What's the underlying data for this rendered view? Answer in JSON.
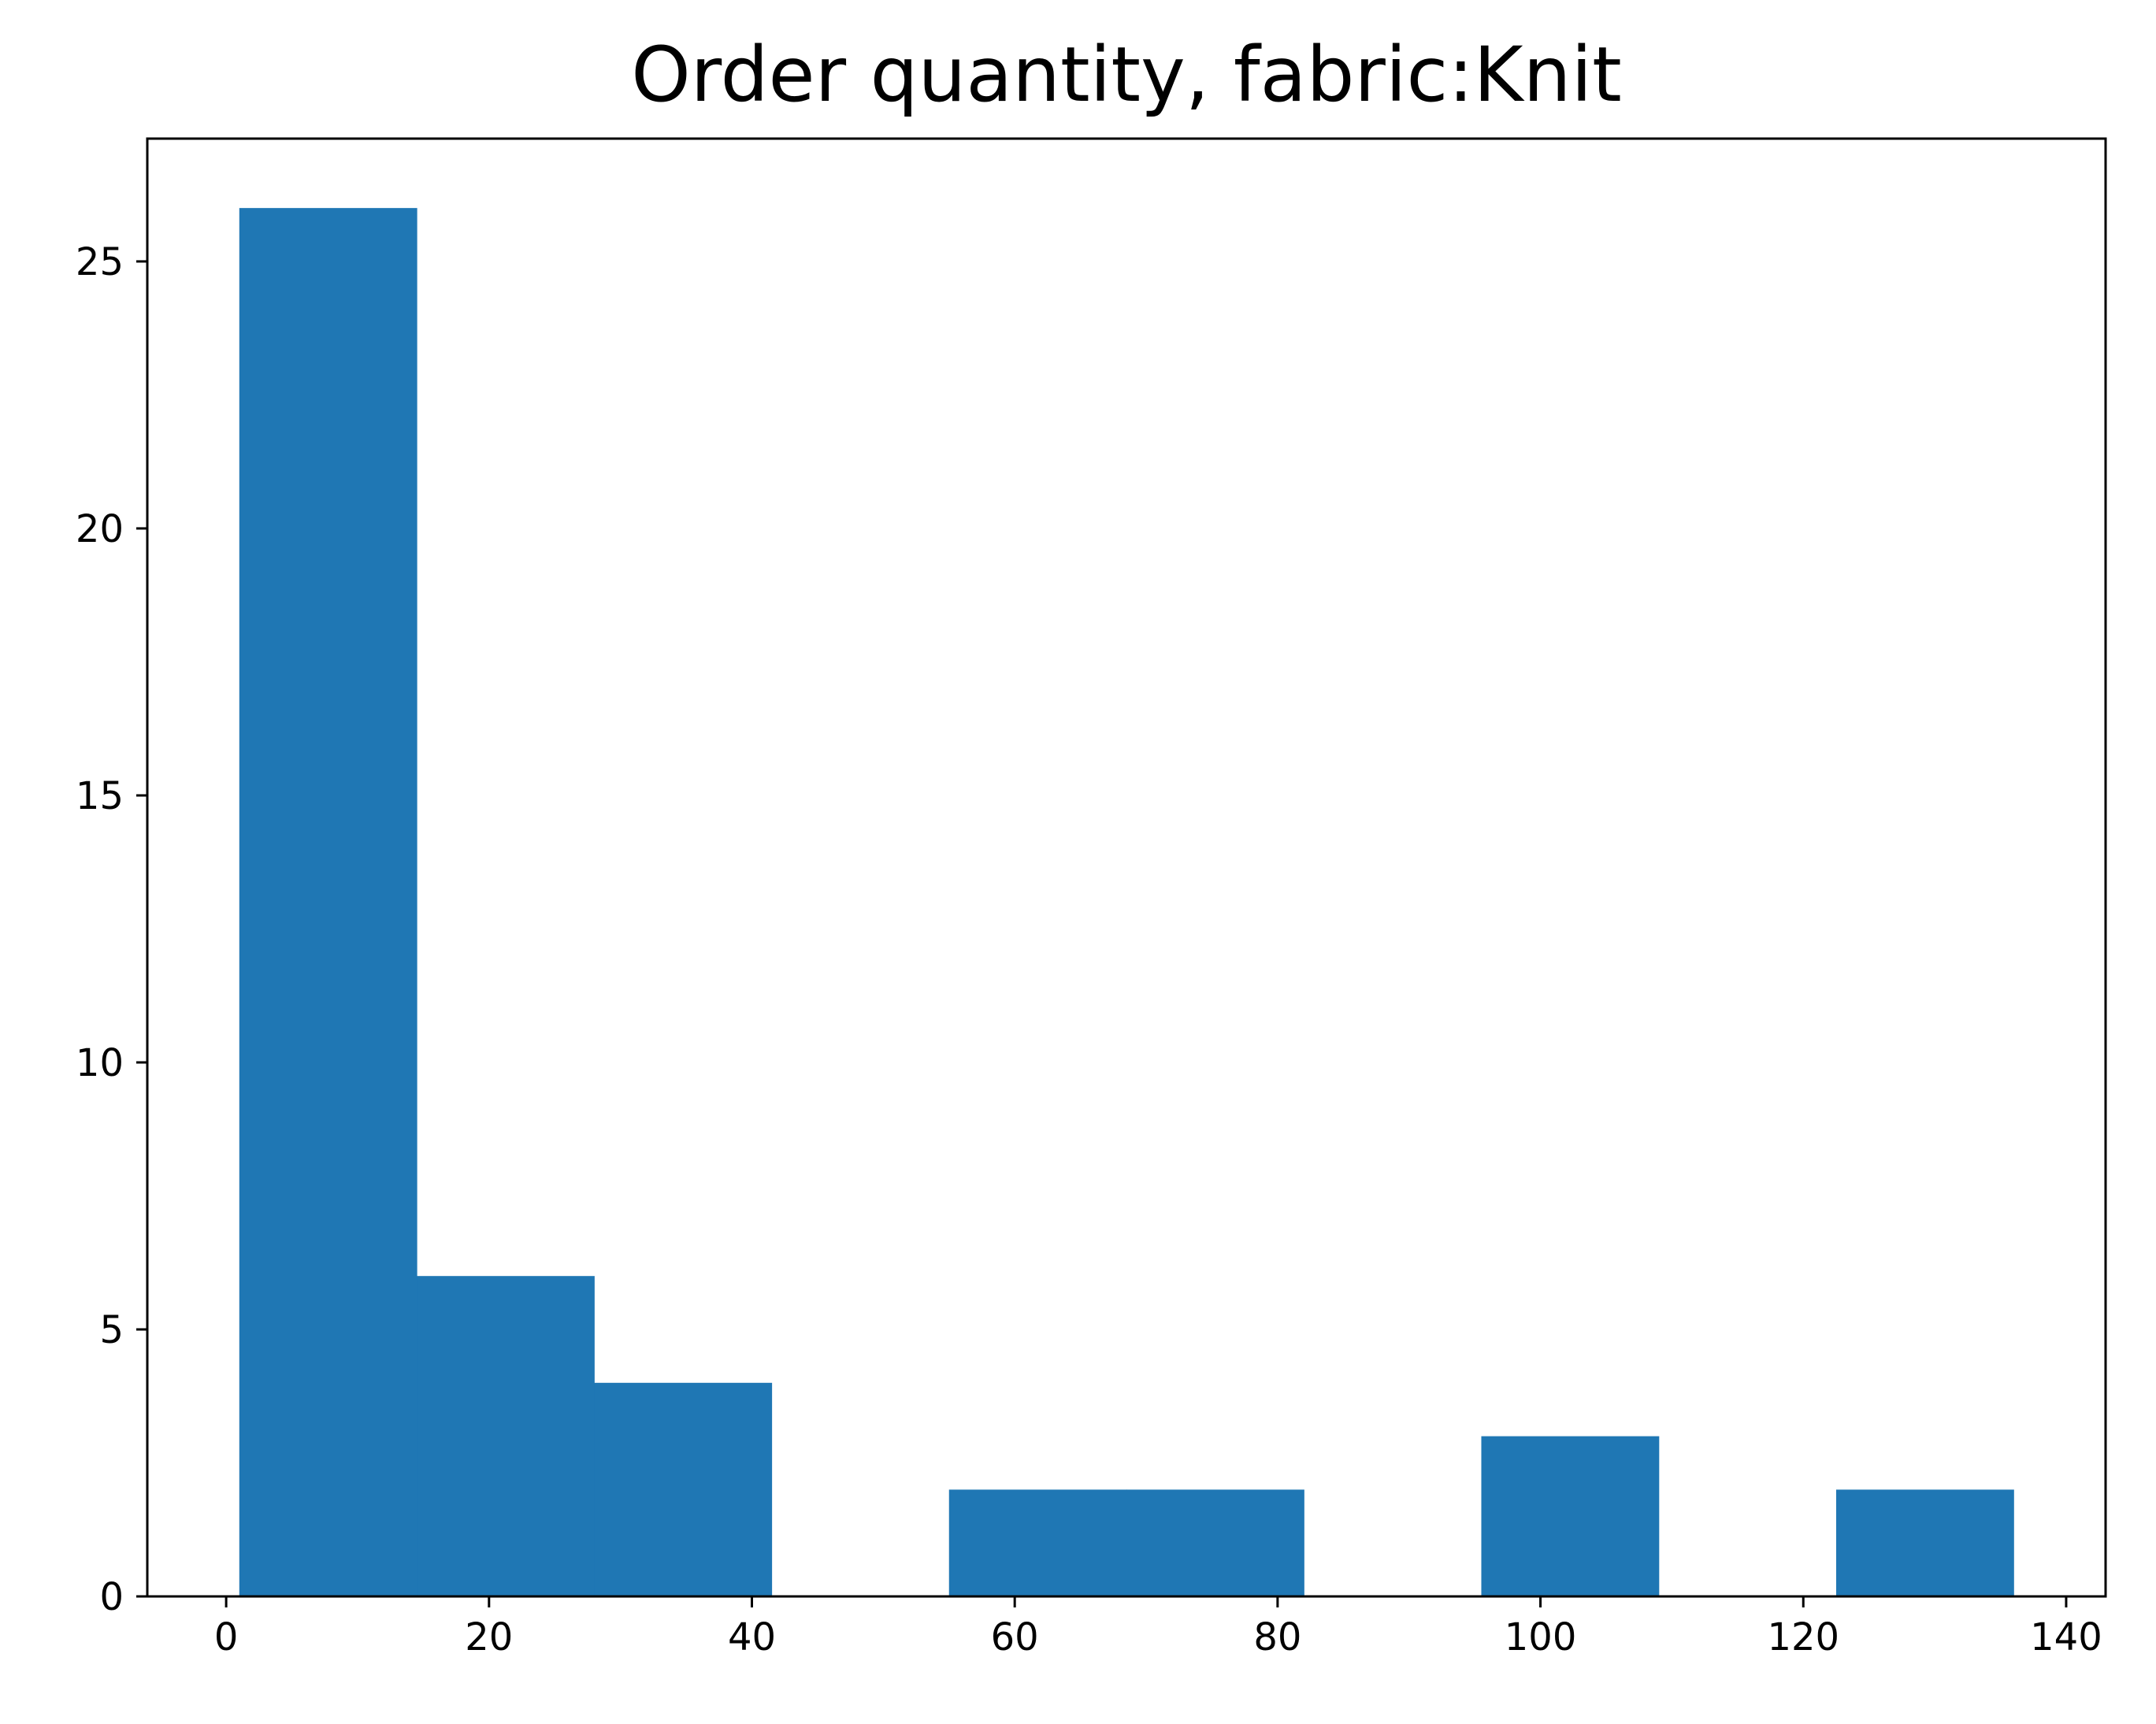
{
  "chart_data": {
    "type": "bar",
    "subtype": "histogram",
    "title": "Order quantity, fabric:Knit",
    "xlabel": "",
    "ylabel": "",
    "bin_edges": [
      1.0,
      14.5,
      28.0,
      41.5,
      55.0,
      68.5,
      82.0,
      95.5,
      109.0,
      122.5,
      136.0
    ],
    "counts": [
      26,
      6,
      4,
      0,
      2,
      2,
      0,
      3,
      0,
      2
    ],
    "xlim": [
      -6,
      143
    ],
    "ylim": [
      0,
      27.3
    ],
    "xticks": [
      0,
      20,
      40,
      60,
      80,
      100,
      120,
      140
    ],
    "xtick_labels": [
      "0",
      "20",
      "40",
      "60",
      "80",
      "100",
      "120",
      "140"
    ],
    "yticks": [
      0,
      5,
      10,
      15,
      20,
      25
    ],
    "ytick_labels": [
      "0",
      "5",
      "10",
      "15",
      "20",
      "25"
    ],
    "bar_color": "#1f77b4",
    "grid": false,
    "legend": "none"
  }
}
